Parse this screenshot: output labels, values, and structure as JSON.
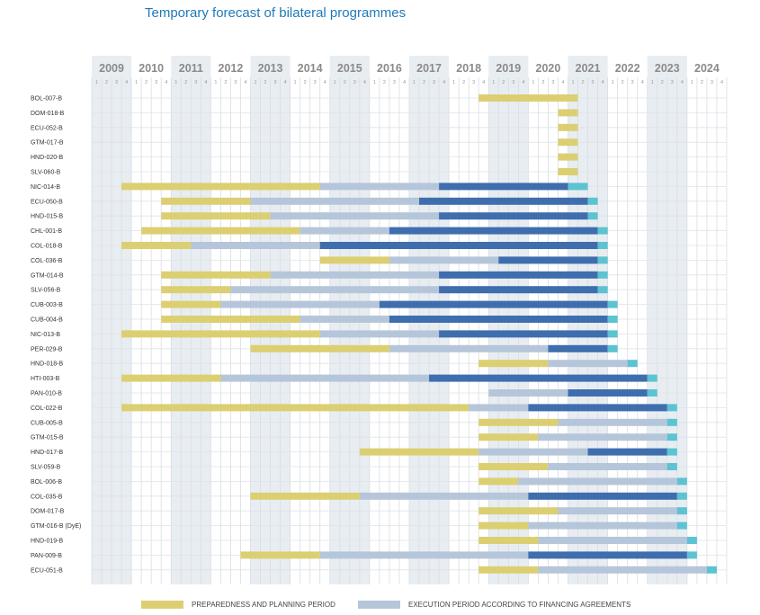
{
  "title": "Temporary forecast of bilateral programmes",
  "colors": {
    "prep": "#dccf72",
    "exec": "#b6c6da",
    "dark": "#3f6eae",
    "ext": "#5cc3d2",
    "band": "#e8edf2"
  },
  "legend": [
    {
      "key": "prep",
      "label": "PREPAREDNESS AND PLANNING PERIOD"
    },
    {
      "key": "exec",
      "label": "EXECUTION PERIOD ACCORDING TO FINANCING AGREEMENTS"
    }
  ],
  "chart_data": {
    "type": "gantt",
    "title": "Temporary forecast of bilateral programmes",
    "years": [
      2009,
      2010,
      2011,
      2012,
      2013,
      2014,
      2015,
      2016,
      2017,
      2018,
      2019,
      2020,
      2021,
      2022,
      2023,
      2024
    ],
    "quarters": [
      "1",
      "2",
      "3",
      "4"
    ],
    "xlim": [
      2009,
      2025
    ],
    "rows": [
      {
        "id": "BOL-007-B",
        "prep": [
          2018.75,
          2021.25
        ]
      },
      {
        "id": "DOM-018-B",
        "prep": [
          2020.75,
          2021.25
        ]
      },
      {
        "id": "ECU-052-B",
        "prep": [
          2020.75,
          2021.25
        ]
      },
      {
        "id": "GTM-017-B",
        "prep": [
          2020.75,
          2021.25
        ]
      },
      {
        "id": "HND-020-B",
        "prep": [
          2020.75,
          2021.25
        ]
      },
      {
        "id": "SLV-060-B",
        "prep": [
          2020.75,
          2021.25
        ]
      },
      {
        "id": "NIC-014-B",
        "prep": [
          2009.75,
          2014.75
        ],
        "exec": [
          2014.75,
          2017.75
        ],
        "dark": [
          2017.75,
          2021
        ],
        "ext": [
          2021,
          2021.5
        ]
      },
      {
        "id": "ECU-050-B",
        "prep": [
          2010.75,
          2013
        ],
        "exec": [
          2013,
          2017.25
        ],
        "dark": [
          2017.25,
          2021.5
        ],
        "ext": [
          2021.5,
          2021.75
        ]
      },
      {
        "id": "HND-015-B",
        "prep": [
          2010.75,
          2013.5
        ],
        "exec": [
          2013.5,
          2017.75
        ],
        "dark": [
          2017.75,
          2021.5
        ],
        "ext": [
          2021.5,
          2021.75
        ]
      },
      {
        "id": "CHL-001-B",
        "prep": [
          2010.25,
          2014.25
        ],
        "exec": [
          2014.25,
          2016.5
        ],
        "dark": [
          2016.5,
          2021.75
        ],
        "ext": [
          2021.75,
          2022
        ]
      },
      {
        "id": "COL-018-B",
        "prep": [
          2009.75,
          2011.5
        ],
        "exec": [
          2011.5,
          2014.75
        ],
        "dark": [
          2014.75,
          2021.75
        ],
        "ext": [
          2021.75,
          2022
        ]
      },
      {
        "id": "COL-036-B",
        "prep": [
          2014.75,
          2016.5
        ],
        "exec": [
          2016.5,
          2019.25
        ],
        "dark": [
          2019.25,
          2021.75
        ],
        "ext": [
          2021.75,
          2022
        ]
      },
      {
        "id": "GTM-014-B",
        "prep": [
          2010.75,
          2013.5
        ],
        "exec": [
          2013.5,
          2017.75
        ],
        "dark": [
          2017.75,
          2021.75
        ],
        "ext": [
          2021.75,
          2022
        ]
      },
      {
        "id": "SLV-056-B",
        "prep": [
          2010.75,
          2012.5
        ],
        "exec": [
          2012.5,
          2017.75
        ],
        "dark": [
          2017.75,
          2021.75
        ],
        "ext": [
          2021.75,
          2022
        ]
      },
      {
        "id": "CUB-003-B",
        "prep": [
          2010.75,
          2012.25
        ],
        "exec": [
          2012.25,
          2016.25
        ],
        "dark": [
          2016.25,
          2022
        ],
        "ext": [
          2022,
          2022.25
        ]
      },
      {
        "id": "CUB-004-B",
        "prep": [
          2010.75,
          2014.25
        ],
        "exec": [
          2014.25,
          2016.5
        ],
        "dark": [
          2016.5,
          2022
        ],
        "ext": [
          2022,
          2022.25
        ]
      },
      {
        "id": "NIC-013-B",
        "prep": [
          2009.75,
          2014.75
        ],
        "exec": [
          2014.75,
          2017.75
        ],
        "dark": [
          2017.75,
          2022
        ],
        "ext": [
          2022,
          2022.25
        ]
      },
      {
        "id": "PER-029-B",
        "prep": [
          2013,
          2016.5
        ],
        "exec": [
          2016.5,
          2020.5
        ],
        "dark": [
          2020.5,
          2022
        ],
        "ext": [
          2022,
          2022.25
        ]
      },
      {
        "id": "HND-018-B",
        "prep": [
          2018.75,
          2020.5
        ],
        "exec": [
          2020.5,
          2022.5
        ],
        "ext": [
          2022.5,
          2022.75
        ]
      },
      {
        "id": "HTI-003-B",
        "prep": [
          2009.75,
          2012.25
        ],
        "exec": [
          2012.25,
          2017.5
        ],
        "dark": [
          2017.5,
          2023
        ],
        "ext": [
          2023,
          2023.25
        ]
      },
      {
        "id": "PAN-010-B",
        "exec": [
          2019,
          2021
        ],
        "dark": [
          2021,
          2023
        ],
        "ext": [
          2023,
          2023.25
        ]
      },
      {
        "id": "COL-022-B",
        "prep": [
          2009.75,
          2018.5
        ],
        "exec": [
          2018.5,
          2020
        ],
        "dark": [
          2020,
          2023.5
        ],
        "ext": [
          2023.5,
          2023.75
        ]
      },
      {
        "id": "CUB-005-B",
        "prep": [
          2018.75,
          2020.75
        ],
        "exec": [
          2020.75,
          2023.5
        ],
        "ext": [
          2023.5,
          2023.75
        ]
      },
      {
        "id": "GTM-015-B",
        "prep": [
          2018.75,
          2020.25
        ],
        "exec": [
          2020.25,
          2023.5
        ],
        "ext": [
          2023.5,
          2023.75
        ]
      },
      {
        "id": "HND-017-B",
        "prep": [
          2015.75,
          2018.75
        ],
        "exec": [
          2018.75,
          2021.5
        ],
        "dark": [
          2021.5,
          2023.5
        ],
        "ext": [
          2023.5,
          2023.75
        ]
      },
      {
        "id": "SLV-059-B",
        "prep": [
          2018.75,
          2020.5
        ],
        "exec": [
          2020.5,
          2023.5
        ],
        "ext": [
          2023.5,
          2023.75
        ]
      },
      {
        "id": "BOL-006-B",
        "prep": [
          2018.75,
          2019.75
        ],
        "exec": [
          2019.75,
          2023.75
        ],
        "ext": [
          2023.75,
          2024
        ]
      },
      {
        "id": "COL-035-B",
        "prep": [
          2013,
          2015.75
        ],
        "exec": [
          2015.75,
          2020
        ],
        "dark": [
          2020,
          2023.75
        ],
        "ext": [
          2023.75,
          2024
        ]
      },
      {
        "id": "DOM-017-B",
        "prep": [
          2018.75,
          2020.75
        ],
        "exec": [
          2020.75,
          2023.75
        ],
        "ext": [
          2023.75,
          2024
        ]
      },
      {
        "id": "GTM-016-B (DyE)",
        "prep": [
          2018.75,
          2020
        ],
        "exec": [
          2020,
          2023.75
        ],
        "ext": [
          2023.75,
          2024
        ]
      },
      {
        "id": "HND-019-B",
        "prep": [
          2018.75,
          2020.25
        ],
        "exec": [
          2020.25,
          2024
        ],
        "ext": [
          2024,
          2024.25
        ]
      },
      {
        "id": "PAN-009-B",
        "prep": [
          2012.75,
          2014.75
        ],
        "exec": [
          2014.75,
          2020
        ],
        "dark": [
          2020,
          2024
        ],
        "ext": [
          2024,
          2024.25
        ]
      },
      {
        "id": "ECU-051-B",
        "prep": [
          2018.75,
          2020.25
        ],
        "exec": [
          2020.25,
          2024.5
        ],
        "ext": [
          2024.5,
          2024.75
        ]
      }
    ]
  }
}
